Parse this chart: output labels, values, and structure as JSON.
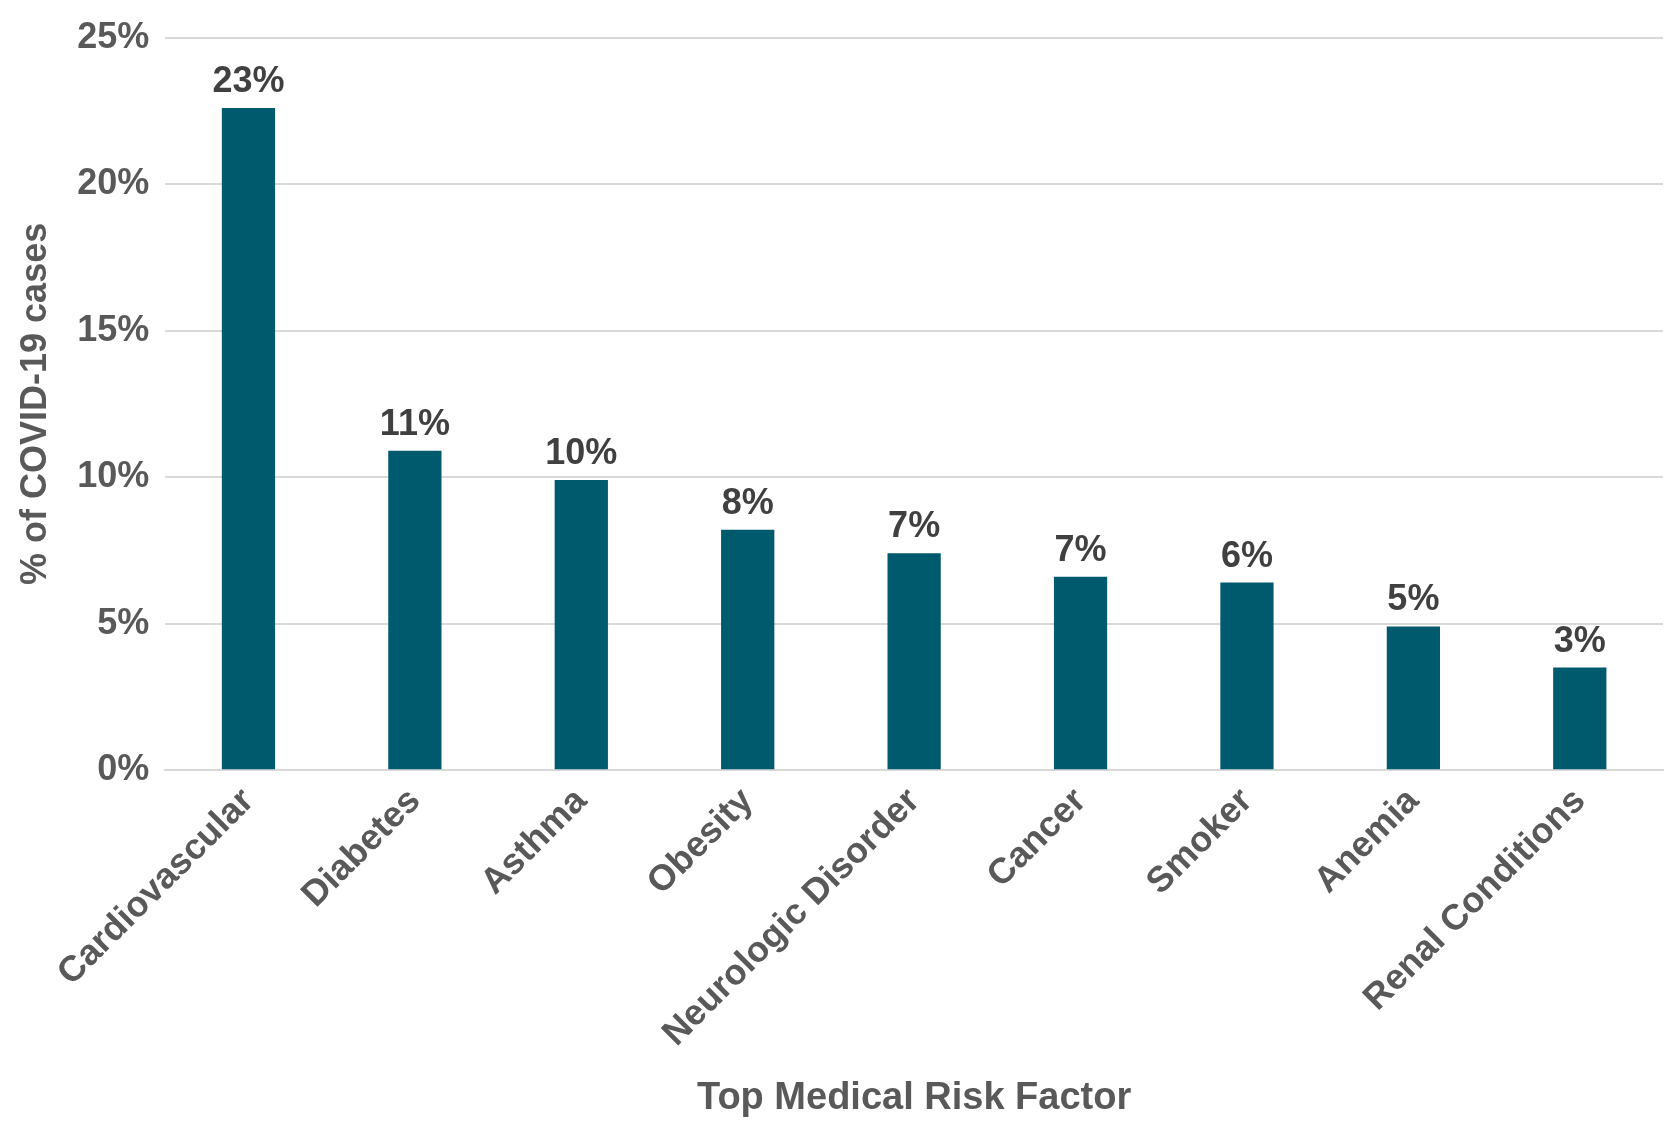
{
  "chart_data": {
    "type": "bar",
    "xlabel": "Top Medical Risk Factor",
    "ylabel": "% of COVID-19 cases",
    "categories": [
      "Cardiovascular",
      "Diabetes",
      "Asthma",
      "Obesity",
      "Neurologic Disorder",
      "Cancer",
      "Smoker",
      "Anemia",
      "Renal Conditions"
    ],
    "values": [
      22.6,
      10.9,
      9.9,
      8.2,
      7.4,
      6.6,
      6.4,
      4.9,
      3.5
    ],
    "value_labels": [
      "23%",
      "11%",
      "10%",
      "8%",
      "7%",
      "7%",
      "6%",
      "5%",
      "3%"
    ],
    "color": "#005a6e",
    "ylim": [
      0,
      25
    ],
    "yticks": [
      {
        "value": 0,
        "label": "0%"
      },
      {
        "value": 5,
        "label": "5%"
      },
      {
        "value": 10,
        "label": "10%"
      },
      {
        "value": 15,
        "label": "15%"
      },
      {
        "value": 20,
        "label": "20%"
      },
      {
        "value": 25,
        "label": "25%"
      }
    ],
    "grid": "y"
  }
}
